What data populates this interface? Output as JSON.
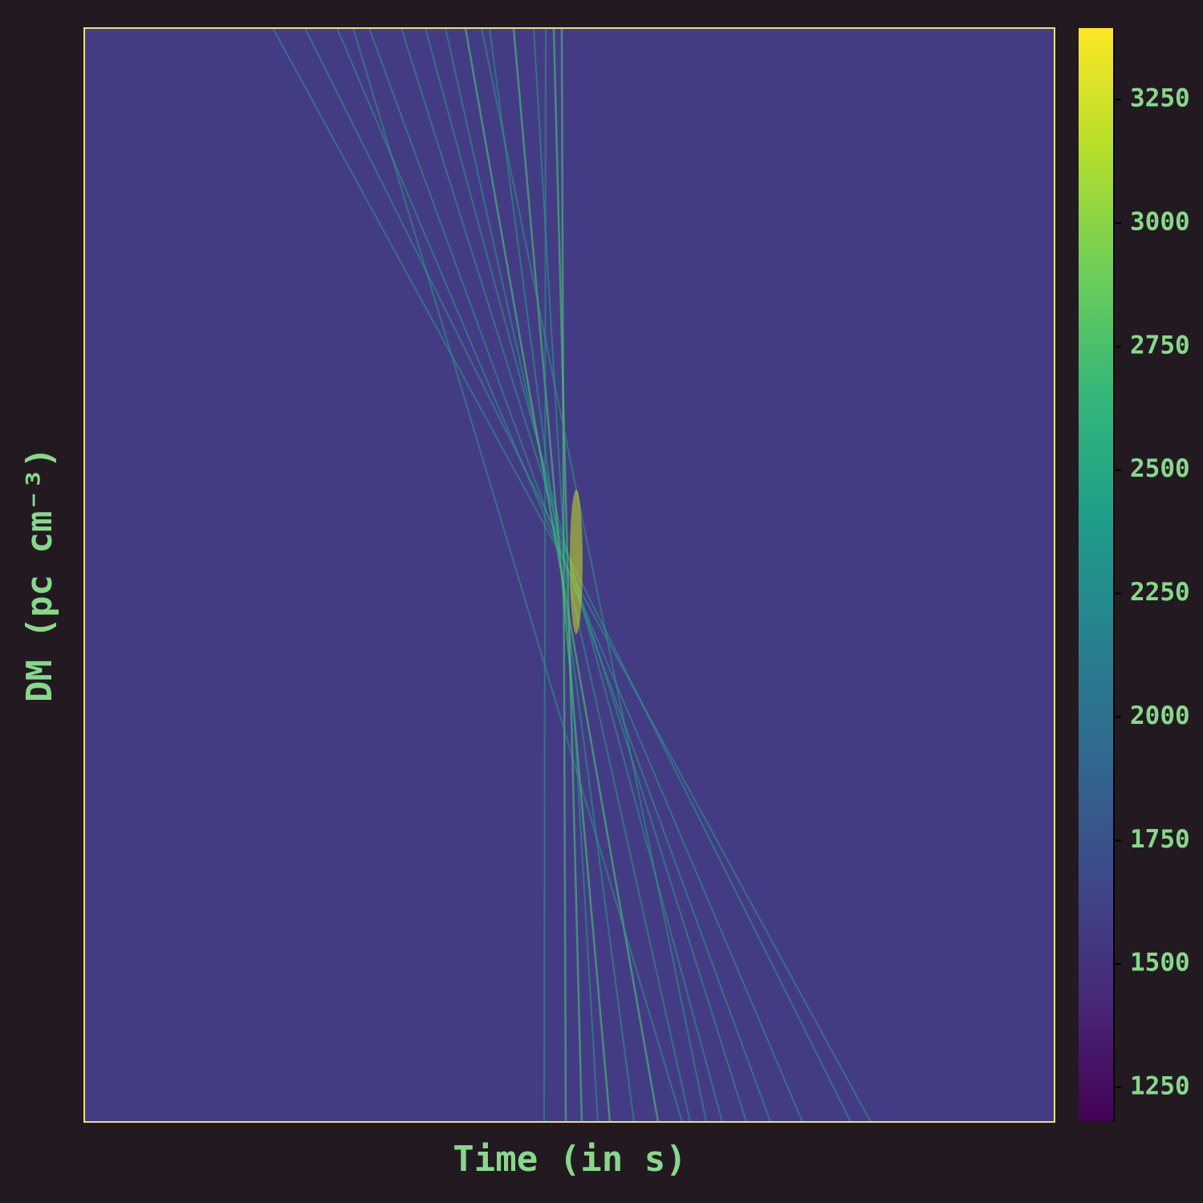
{
  "chart_data": {
    "type": "heatmap",
    "xlabel": "Time (in s)",
    "ylabel": "DM (pc cm⁻³)",
    "colormap": "viridis",
    "clim": [
      1180,
      3395
    ],
    "cticks": [
      1250,
      1500,
      1750,
      2000,
      2250,
      2500,
      2750,
      3000,
      3250
    ]
  }
}
